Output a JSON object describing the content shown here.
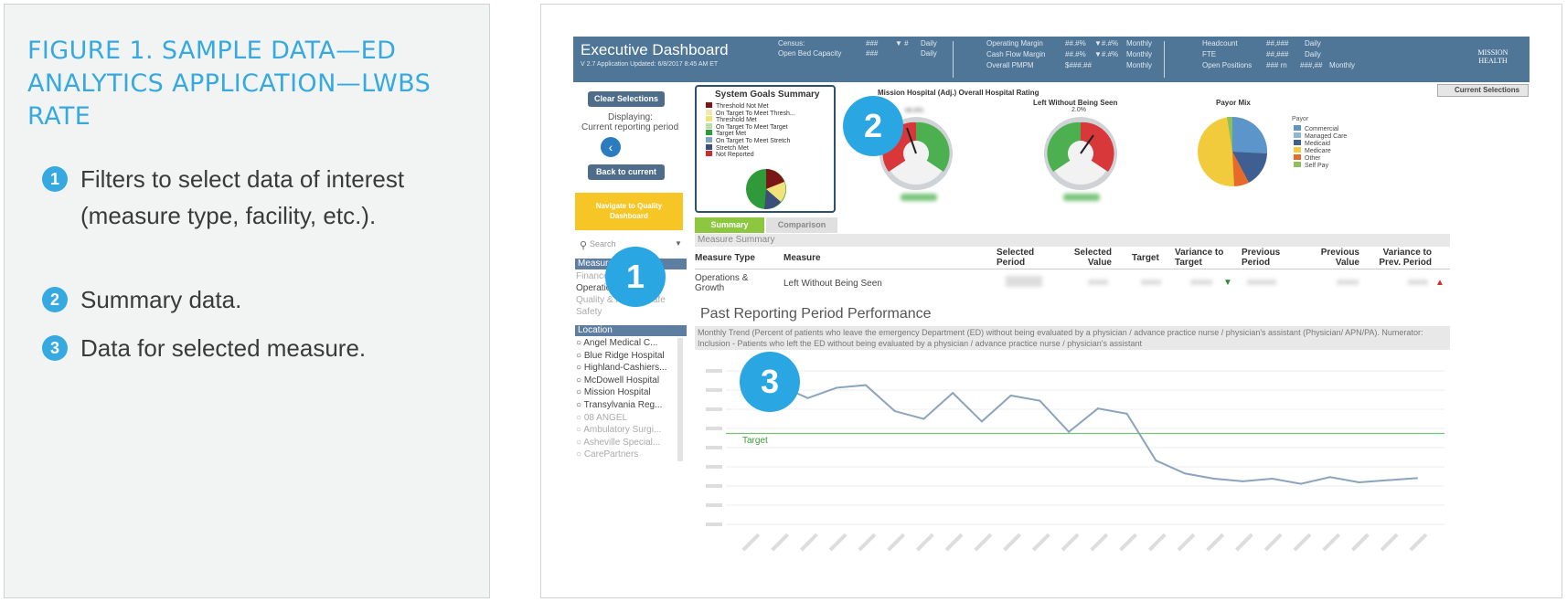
{
  "caption": {
    "title": "FIGURE 1. SAMPLE DATA—ED ANALYTICS APPLICATION—LWBS RATE",
    "items": [
      {
        "num": "1",
        "text": "Filters to select data of interest (measure type, facility, etc.)."
      },
      {
        "num": "2",
        "text": "Summary data."
      },
      {
        "num": "3",
        "text": "Data for selected measure."
      }
    ]
  },
  "dashboard": {
    "title": "Executive Dashboard",
    "version": "V 2.7   Application Updated: 6/8/2017 8:45 AM ET",
    "stats": {
      "census": "Census:",
      "census_val": "###",
      "census_arrow": "▼ #",
      "census_freq": "Daily",
      "bed": "Open Bed Capacity",
      "bed_val": "###",
      "bed_freq": "Daily",
      "op_margin": "Operating Margin",
      "op_val": "##.#%",
      "op_arrow": "▼#.#%",
      "op_freq": "Monthly",
      "cash": "Cash Flow Margin",
      "cash_val": "##.#%",
      "cash_arrow": "▼#.#%",
      "cash_freq": "Monthly",
      "pmpm": "Overall PMPM",
      "pmpm_val": "$###.##",
      "pmpm_freq": "Monthly",
      "head": "Headcount",
      "head_val": "##,###",
      "head_freq": "Daily",
      "fte": "FTE",
      "fte_val": "##,###",
      "fte_freq": "Daily",
      "open_pos": "Open Positions",
      "open_val": "### rn",
      "open_val2": "###,##",
      "open_freq": "Monthly"
    },
    "logo": "MISSION HEALTH",
    "current_selections": "Current Selections",
    "clear_selections": "Clear Selections",
    "displaying": "Displaying:",
    "current_period": "Current reporting period",
    "back_to_current": "Back to current",
    "navigate": "Navigate to Quality Dashboard",
    "search_placeholder": "Search",
    "measure_type_header": "Measure Type",
    "measure_types": [
      "Finance",
      "Operations & Growth",
      "Quality & Patient Safe",
      "Safety"
    ],
    "location_header": "Location",
    "locations": [
      "Angel Medical C...",
      "Blue Ridge Hospital",
      "Highland-Cashiers...",
      "McDowell Hospital",
      "Mission Hospital",
      "Transylvania Reg...",
      "08 ANGEL",
      "Ambulatory Surgi...",
      "Asheville Special...",
      "CarePartners"
    ],
    "system_goals": {
      "title": "System Goals Summary",
      "items": [
        {
          "label": "Threshold Not Met",
          "color": "#7b1618"
        },
        {
          "label": "On Target To Meet Thresh...",
          "color": "#f1e7b0"
        },
        {
          "label": "Threshold Met",
          "color": "#f2e27a"
        },
        {
          "label": "On Target To Meet Target",
          "color": "#b8dfa8"
        },
        {
          "label": "Target Met",
          "color": "#2f9a3a"
        },
        {
          "label": "On Target To Meet Stretch",
          "color": "#7fa4c9"
        },
        {
          "label": "Stretch Met",
          "color": "#3b4f7a"
        },
        {
          "label": "Not Reported",
          "color": "#c62f2f"
        }
      ]
    },
    "gauges": [
      {
        "title": "Mission Hospital (Adj.) Overall Hospital Rating",
        "value": "##.#%"
      },
      {
        "title": "Left Without Being Seen",
        "value": "2.0%"
      }
    ],
    "payor_mix": {
      "title": "Payor Mix",
      "legend_title": "Payor",
      "items": [
        {
          "label": "Commercial",
          "color": "#5b95c9"
        },
        {
          "label": "Managed Care",
          "color": "#8fb8d8"
        },
        {
          "label": "Medicaid",
          "color": "#3f5f92"
        },
        {
          "label": "Medicare",
          "color": "#f2cb3d"
        },
        {
          "label": "Other",
          "color": "#e86a2a"
        },
        {
          "label": "Self Pay",
          "color": "#8dbf5b"
        }
      ]
    },
    "tabs": [
      "Summary",
      "Comparison"
    ],
    "measure_summary_title": "Measure Summary",
    "table_headers": [
      "Measure Type",
      "Measure",
      "Selected Period",
      "Selected Value",
      "Target",
      "Variance to Target",
      "Previous Period",
      "Previous Value",
      "Variance to Prev. Period"
    ],
    "row": {
      "type": "Operations & Growth",
      "measure": "Left Without Being Seen"
    },
    "past_title": "Past Reporting Period Performance",
    "trend_desc": "Monthly Trend (Percent of patients who leave the emergency Department (ED) without being evaluated by a physician / advance practice nurse / physician's assistant (Physician/ APN/PA). Numerator: Inclusion -  Patients who left the ED without being evaluated by a physician / advance practice nurse / physician's assistant",
    "target_label": "Target",
    "callouts": [
      "1",
      "2",
      "3"
    ]
  },
  "chart_data": {
    "type": "line",
    "series": [
      {
        "values": [
          3.45,
          3.75,
          3.5,
          3.7,
          3.75,
          3.25,
          3.1,
          3.6,
          3.05,
          3.55,
          3.45,
          2.85,
          3.3,
          3.2,
          2.3,
          2.05,
          1.95,
          1.9,
          1.95,
          1.85,
          1.98,
          1.88,
          1.92,
          1.96
        ]
      }
    ],
    "target": 2.82,
    "ylim": [
      1,
      4.2
    ],
    "grid": true
  }
}
